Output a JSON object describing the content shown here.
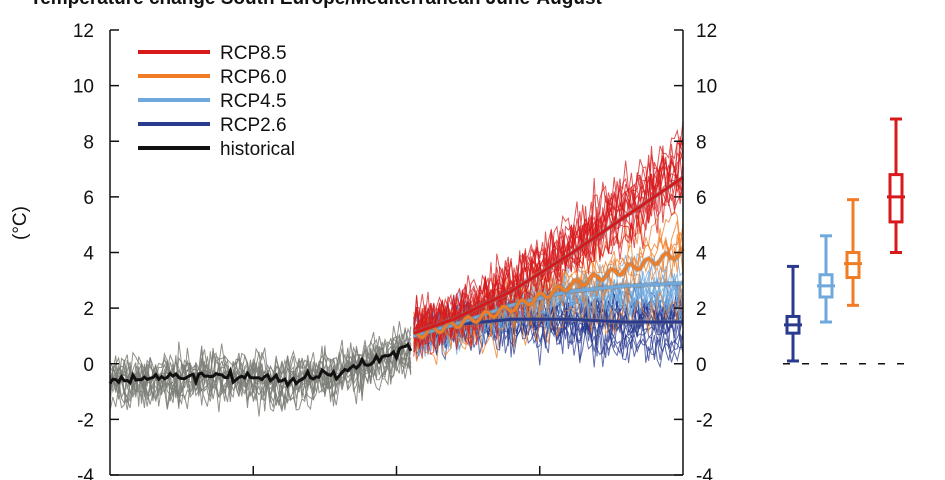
{
  "chart_data": {
    "type": "line",
    "title": "Temperature change South Europe/Mediterranean June-August",
    "ylabel": "(°C)",
    "xlabel": "",
    "ylim": [
      -4,
      12
    ],
    "yticks": [
      -4,
      -2,
      0,
      2,
      4,
      6,
      8,
      10,
      12
    ],
    "grid": false,
    "legend_position": "top-left",
    "series": [
      {
        "name": "RCP8.5",
        "color": "#d7191c",
        "mean": [
          [
            2006,
            1.1
          ],
          [
            2020,
            1.6
          ],
          [
            2040,
            2.6
          ],
          [
            2060,
            3.9
          ],
          [
            2080,
            5.3
          ],
          [
            2100,
            6.7
          ]
        ]
      },
      {
        "name": "RCP6.0",
        "color": "#f07c25",
        "mean": [
          [
            2006,
            1.0
          ],
          [
            2020,
            1.4
          ],
          [
            2040,
            2.0
          ],
          [
            2060,
            2.8
          ],
          [
            2080,
            3.4
          ],
          [
            2100,
            4.0
          ]
        ]
      },
      {
        "name": "RCP4.5",
        "color": "#6fa8dc",
        "mean": [
          [
            2006,
            1.0
          ],
          [
            2020,
            1.4
          ],
          [
            2040,
            2.1
          ],
          [
            2060,
            2.6
          ],
          [
            2080,
            2.8
          ],
          [
            2100,
            2.9
          ]
        ]
      },
      {
        "name": "RCP2.6",
        "color": "#2a3a8f",
        "mean": [
          [
            2006,
            1.0
          ],
          [
            2020,
            1.4
          ],
          [
            2040,
            1.6
          ],
          [
            2060,
            1.6
          ],
          [
            2080,
            1.5
          ],
          [
            2100,
            1.5
          ]
        ]
      },
      {
        "name": "historical",
        "color": "#111111",
        "mean": [
          [
            1900,
            -0.6
          ],
          [
            1920,
            -0.5
          ],
          [
            1940,
            -0.4
          ],
          [
            1960,
            -0.6
          ],
          [
            1980,
            -0.3
          ],
          [
            1995,
            0.2
          ],
          [
            2005,
            0.6
          ]
        ]
      }
    ],
    "box_whisker_2081_2100": [
      {
        "scenario": "RCP2.6",
        "color": "#2a3a8f",
        "min": 0.1,
        "q1": 1.1,
        "median": 1.4,
        "q3": 1.7,
        "max": 3.5
      },
      {
        "scenario": "RCP4.5",
        "color": "#6fa8dc",
        "min": 1.5,
        "q1": 2.4,
        "median": 2.8,
        "q3": 3.2,
        "max": 4.6
      },
      {
        "scenario": "RCP6.0",
        "color": "#f07c25",
        "min": 2.1,
        "q1": 3.1,
        "median": 3.6,
        "q3": 4.0,
        "max": 5.9
      },
      {
        "scenario": "RCP8.5",
        "color": "#d7191c",
        "min": 4.0,
        "q1": 5.1,
        "median": 6.0,
        "q3": 6.8,
        "max": 8.8
      }
    ],
    "ensemble_color_historical": "#7a7d75"
  }
}
